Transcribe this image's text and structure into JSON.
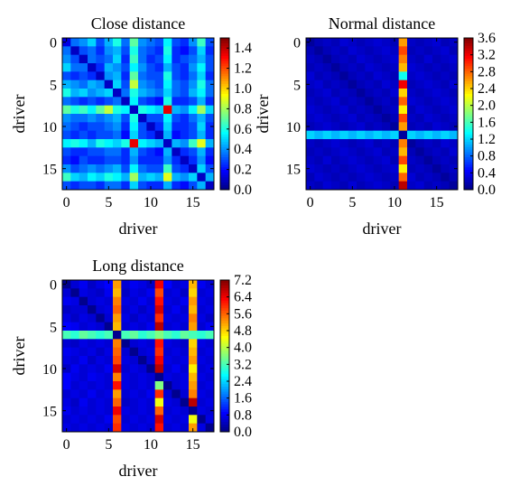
{
  "chart_data": [
    {
      "type": "heatmap",
      "title": "Close distance",
      "xlabel": "driver",
      "ylabel": "driver",
      "n": 18,
      "xticks": [
        0,
        5,
        10,
        15
      ],
      "yticks": [
        0,
        5,
        10,
        15
      ],
      "colorbar": {
        "min": 0.0,
        "max": 1.5,
        "ticks": [
          "0.0",
          "0.2",
          "0.4",
          "0.6",
          "0.8",
          "1.0",
          "1.2",
          "1.4"
        ]
      },
      "colormap": "jet",
      "values": [
        [
          0.15,
          0.35,
          0.4,
          0.5,
          0.3,
          0.45,
          0.6,
          0.35,
          0.7,
          0.4,
          0.35,
          0.3,
          0.55,
          0.3,
          0.25,
          0.4,
          0.65,
          0.3
        ],
        [
          0.35,
          0.1,
          0.3,
          0.35,
          0.25,
          0.4,
          0.45,
          0.3,
          0.6,
          0.35,
          0.3,
          0.25,
          0.6,
          0.25,
          0.2,
          0.3,
          0.5,
          0.25
        ],
        [
          0.4,
          0.3,
          0.1,
          0.35,
          0.3,
          0.35,
          0.5,
          0.25,
          0.65,
          0.35,
          0.25,
          0.3,
          0.55,
          0.25,
          0.3,
          0.35,
          0.45,
          0.3
        ],
        [
          0.5,
          0.35,
          0.35,
          0.1,
          0.25,
          0.45,
          0.4,
          0.3,
          0.55,
          0.4,
          0.3,
          0.25,
          0.45,
          0.3,
          0.25,
          0.4,
          0.55,
          0.3
        ],
        [
          0.3,
          0.25,
          0.3,
          0.25,
          0.1,
          0.4,
          0.45,
          0.25,
          0.7,
          0.35,
          0.3,
          0.3,
          0.6,
          0.3,
          0.25,
          0.35,
          0.5,
          0.25
        ],
        [
          0.45,
          0.4,
          0.35,
          0.45,
          0.4,
          0.1,
          0.5,
          0.3,
          0.85,
          0.4,
          0.35,
          0.3,
          0.55,
          0.35,
          0.3,
          0.4,
          0.6,
          0.35
        ],
        [
          0.6,
          0.45,
          0.5,
          0.4,
          0.45,
          0.5,
          0.1,
          0.35,
          0.6,
          0.45,
          0.4,
          0.35,
          0.5,
          0.35,
          0.3,
          0.45,
          0.55,
          0.35
        ],
        [
          0.35,
          0.3,
          0.25,
          0.3,
          0.25,
          0.3,
          0.35,
          0.1,
          0.55,
          0.3,
          0.25,
          0.2,
          0.6,
          0.25,
          0.25,
          0.3,
          0.45,
          0.25
        ],
        [
          0.7,
          0.6,
          0.65,
          0.55,
          0.7,
          0.85,
          0.6,
          0.55,
          0.1,
          0.6,
          0.55,
          0.5,
          1.35,
          0.45,
          0.4,
          0.55,
          0.8,
          0.5
        ],
        [
          0.4,
          0.35,
          0.35,
          0.4,
          0.35,
          0.4,
          0.45,
          0.3,
          0.6,
          0.1,
          0.3,
          0.3,
          0.55,
          0.3,
          0.25,
          0.35,
          0.45,
          0.3
        ],
        [
          0.35,
          0.3,
          0.25,
          0.3,
          0.3,
          0.35,
          0.4,
          0.25,
          0.55,
          0.3,
          0.1,
          0.25,
          0.5,
          0.25,
          0.25,
          0.3,
          0.5,
          0.25
        ],
        [
          0.3,
          0.25,
          0.3,
          0.25,
          0.3,
          0.3,
          0.35,
          0.2,
          0.5,
          0.3,
          0.25,
          0.1,
          0.45,
          0.2,
          0.25,
          0.3,
          0.45,
          0.25
        ],
        [
          0.55,
          0.6,
          0.55,
          0.45,
          0.6,
          0.55,
          0.5,
          0.6,
          1.35,
          0.55,
          0.5,
          0.45,
          0.1,
          0.45,
          0.4,
          0.65,
          0.9,
          0.45
        ],
        [
          0.3,
          0.25,
          0.25,
          0.3,
          0.3,
          0.35,
          0.35,
          0.25,
          0.45,
          0.3,
          0.25,
          0.2,
          0.45,
          0.1,
          0.25,
          0.3,
          0.45,
          0.25
        ],
        [
          0.25,
          0.2,
          0.3,
          0.25,
          0.25,
          0.3,
          0.3,
          0.25,
          0.4,
          0.25,
          0.25,
          0.25,
          0.4,
          0.25,
          0.1,
          0.25,
          0.4,
          0.2
        ],
        [
          0.4,
          0.3,
          0.35,
          0.4,
          0.35,
          0.4,
          0.45,
          0.3,
          0.55,
          0.35,
          0.3,
          0.3,
          0.65,
          0.3,
          0.25,
          0.1,
          0.5,
          0.3
        ],
        [
          0.65,
          0.5,
          0.45,
          0.55,
          0.5,
          0.6,
          0.55,
          0.45,
          0.8,
          0.45,
          0.5,
          0.45,
          0.9,
          0.45,
          0.4,
          0.5,
          0.1,
          0.45
        ],
        [
          0.3,
          0.25,
          0.3,
          0.3,
          0.25,
          0.35,
          0.35,
          0.25,
          0.5,
          0.3,
          0.25,
          0.25,
          0.45,
          0.25,
          0.2,
          0.3,
          0.45,
          0.1
        ]
      ]
    },
    {
      "type": "heatmap",
      "title": "Normal distance",
      "xlabel": "driver",
      "ylabel": "driver",
      "n": 18,
      "xticks": [
        0,
        5,
        10,
        15
      ],
      "yticks": [
        0,
        5,
        10,
        15
      ],
      "colorbar": {
        "min": 0.0,
        "max": 3.6,
        "ticks": [
          "0.0",
          "0.4",
          "0.8",
          "1.2",
          "1.6",
          "2.0",
          "2.4",
          "2.8",
          "3.2",
          "3.6"
        ]
      },
      "colormap": "jet",
      "values": [
        [
          0.1,
          0.2,
          0.25,
          0.2,
          0.3,
          0.25,
          0.2,
          0.25,
          0.3,
          0.25,
          0.2,
          2.6,
          0.25,
          0.2,
          0.25,
          0.3,
          0.2,
          0.25
        ],
        [
          0.2,
          0.1,
          0.2,
          0.25,
          0.2,
          0.3,
          0.25,
          0.2,
          0.25,
          0.3,
          0.25,
          2.9,
          0.2,
          0.25,
          0.2,
          0.25,
          0.3,
          0.2
        ],
        [
          0.25,
          0.2,
          0.1,
          0.2,
          0.25,
          0.2,
          0.3,
          0.25,
          0.2,
          0.25,
          0.3,
          2.7,
          0.25,
          0.2,
          0.3,
          0.2,
          0.25,
          0.3
        ],
        [
          0.2,
          0.25,
          0.2,
          0.1,
          0.2,
          0.25,
          0.2,
          0.3,
          0.25,
          0.2,
          0.25,
          2.5,
          0.3,
          0.25,
          0.2,
          0.25,
          0.2,
          0.25
        ],
        [
          0.3,
          0.2,
          0.25,
          0.2,
          0.1,
          0.2,
          0.25,
          0.2,
          0.3,
          0.25,
          0.2,
          1.4,
          0.25,
          0.3,
          0.25,
          0.2,
          0.25,
          0.2
        ],
        [
          0.25,
          0.3,
          0.2,
          0.25,
          0.2,
          0.1,
          0.2,
          0.25,
          0.2,
          0.3,
          0.25,
          3.2,
          0.2,
          0.25,
          0.3,
          0.25,
          0.2,
          0.3
        ],
        [
          0.2,
          0.25,
          0.3,
          0.2,
          0.25,
          0.2,
          0.1,
          0.2,
          0.25,
          0.2,
          0.3,
          2.4,
          0.25,
          0.2,
          0.25,
          0.3,
          0.25,
          0.2
        ],
        [
          0.25,
          0.2,
          0.25,
          0.3,
          0.2,
          0.25,
          0.2,
          0.1,
          0.2,
          0.25,
          0.2,
          2.8,
          0.3,
          0.25,
          0.2,
          0.25,
          0.3,
          0.25
        ],
        [
          0.3,
          0.25,
          0.2,
          0.25,
          0.3,
          0.2,
          0.25,
          0.2,
          0.1,
          0.2,
          0.25,
          2.3,
          0.2,
          0.3,
          0.25,
          0.2,
          0.25,
          0.3
        ],
        [
          0.25,
          0.3,
          0.25,
          0.2,
          0.25,
          0.3,
          0.2,
          0.25,
          0.2,
          0.1,
          0.2,
          2.9,
          0.25,
          0.2,
          0.3,
          0.25,
          0.2,
          0.25
        ],
        [
          0.2,
          0.25,
          0.3,
          0.25,
          0.2,
          0.25,
          0.3,
          0.2,
          0.25,
          0.2,
          0.1,
          2.6,
          0.2,
          0.25,
          0.2,
          0.3,
          0.25,
          0.2
        ],
        [
          1.2,
          1.1,
          1.2,
          1.1,
          1.2,
          1.1,
          1.2,
          1.1,
          1.2,
          1.1,
          1.2,
          0.1,
          1.2,
          1.1,
          1.2,
          1.1,
          1.2,
          1.1
        ],
        [
          0.25,
          0.2,
          0.25,
          0.3,
          0.25,
          0.2,
          0.25,
          0.3,
          0.2,
          0.25,
          0.2,
          2.7,
          0.1,
          0.2,
          0.25,
          0.2,
          0.3,
          0.25
        ],
        [
          0.2,
          0.25,
          0.2,
          0.25,
          0.3,
          0.25,
          0.2,
          0.25,
          0.3,
          0.2,
          0.25,
          2.5,
          0.2,
          0.1,
          0.2,
          0.25,
          0.2,
          0.3
        ],
        [
          0.25,
          0.2,
          0.3,
          0.2,
          0.25,
          0.3,
          0.25,
          0.2,
          0.25,
          0.3,
          0.2,
          2.9,
          0.25,
          0.2,
          0.1,
          0.2,
          0.25,
          0.2
        ],
        [
          0.3,
          0.25,
          0.2,
          0.25,
          0.2,
          0.25,
          0.3,
          0.25,
          0.2,
          0.25,
          0.3,
          2.3,
          0.2,
          0.25,
          0.2,
          0.1,
          0.2,
          0.25
        ],
        [
          0.2,
          0.3,
          0.25,
          0.2,
          0.25,
          0.2,
          0.25,
          0.3,
          0.25,
          0.2,
          0.25,
          2.8,
          0.3,
          0.2,
          0.25,
          0.2,
          0.1,
          0.2
        ],
        [
          0.25,
          0.2,
          0.3,
          0.25,
          0.2,
          0.3,
          0.2,
          0.25,
          0.3,
          0.25,
          0.2,
          3.4,
          0.25,
          0.3,
          0.2,
          0.25,
          0.2,
          0.1
        ]
      ]
    },
    {
      "type": "heatmap",
      "title": "Long distance",
      "xlabel": "driver",
      "ylabel": "driver",
      "n": 18,
      "xticks": [
        0,
        5,
        10,
        15
      ],
      "yticks": [
        0,
        5,
        10,
        15
      ],
      "colorbar": {
        "min": 0.0,
        "max": 7.2,
        "ticks": [
          "0.0",
          "0.8",
          "1.6",
          "2.4",
          "3.2",
          "4.0",
          "4.8",
          "5.6",
          "6.4",
          "7.2"
        ]
      },
      "colormap": "jet",
      "values": [
        [
          0.1,
          0.6,
          0.8,
          0.5,
          0.7,
          0.9,
          5.2,
          0.6,
          0.8,
          0.7,
          0.5,
          6.4,
          0.9,
          0.6,
          0.7,
          5.0,
          0.8,
          0.6
        ],
        [
          0.6,
          0.1,
          0.7,
          0.6,
          0.5,
          0.8,
          5.0,
          0.5,
          0.7,
          0.6,
          0.8,
          5.8,
          0.6,
          0.7,
          0.5,
          4.8,
          0.6,
          0.7
        ],
        [
          0.8,
          0.7,
          0.1,
          0.6,
          0.7,
          0.6,
          5.4,
          0.7,
          0.6,
          0.8,
          0.6,
          6.2,
          0.7,
          0.6,
          0.8,
          5.2,
          0.7,
          0.6
        ],
        [
          0.5,
          0.6,
          0.6,
          0.1,
          0.6,
          0.7,
          5.6,
          0.6,
          0.7,
          0.5,
          0.7,
          6.6,
          0.6,
          0.8,
          0.6,
          5.0,
          0.6,
          0.7
        ],
        [
          0.7,
          0.5,
          0.7,
          0.6,
          0.1,
          0.6,
          5.2,
          0.7,
          0.5,
          0.7,
          0.6,
          6.0,
          0.7,
          0.6,
          0.7,
          5.4,
          0.7,
          0.5
        ],
        [
          0.9,
          0.8,
          0.6,
          0.7,
          0.6,
          0.1,
          5.0,
          0.6,
          0.7,
          0.6,
          0.8,
          6.8,
          0.6,
          0.7,
          0.6,
          5.2,
          0.6,
          0.8
        ],
        [
          3.2,
          3.0,
          3.4,
          3.2,
          3.0,
          3.2,
          0.1,
          3.2,
          3.4,
          3.0,
          3.2,
          3.6,
          3.2,
          3.0,
          3.4,
          3.2,
          3.0,
          3.2
        ],
        [
          0.6,
          0.5,
          0.7,
          0.6,
          0.7,
          0.6,
          5.4,
          0.1,
          0.6,
          0.7,
          0.6,
          6.2,
          0.7,
          0.6,
          0.5,
          4.8,
          0.7,
          0.6
        ],
        [
          0.8,
          0.7,
          0.6,
          0.7,
          0.5,
          0.7,
          5.6,
          0.6,
          0.1,
          0.6,
          0.7,
          6.0,
          0.6,
          0.7,
          0.6,
          5.0,
          0.6,
          0.7
        ],
        [
          0.7,
          0.6,
          0.8,
          0.5,
          0.7,
          0.6,
          5.8,
          0.7,
          0.6,
          0.1,
          0.6,
          6.4,
          0.7,
          0.6,
          0.7,
          5.2,
          0.7,
          0.6
        ],
        [
          0.5,
          0.8,
          0.6,
          0.7,
          0.6,
          0.8,
          6.6,
          0.6,
          0.7,
          0.6,
          0.1,
          6.8,
          0.6,
          0.8,
          0.6,
          4.6,
          0.6,
          0.7
        ],
        [
          0.9,
          0.7,
          0.6,
          0.8,
          0.7,
          0.6,
          5.4,
          0.7,
          0.6,
          0.7,
          0.6,
          0.1,
          0.7,
          0.6,
          0.7,
          5.0,
          0.7,
          0.6
        ],
        [
          0.9,
          0.6,
          0.7,
          0.6,
          0.7,
          0.6,
          6.2,
          0.7,
          0.6,
          0.7,
          0.6,
          3.6,
          0.1,
          0.6,
          0.7,
          5.2,
          0.6,
          0.7
        ],
        [
          0.6,
          0.7,
          0.6,
          0.8,
          0.6,
          0.7,
          5.2,
          0.6,
          0.7,
          0.6,
          0.8,
          6.0,
          0.6,
          0.1,
          0.6,
          5.4,
          0.7,
          0.6
        ],
        [
          0.7,
          0.5,
          0.8,
          0.6,
          0.7,
          0.6,
          5.6,
          0.5,
          0.6,
          0.7,
          0.6,
          4.4,
          0.7,
          0.6,
          0.1,
          6.8,
          0.6,
          0.7
        ],
        [
          0.8,
          0.6,
          0.7,
          0.6,
          0.7,
          0.6,
          6.4,
          0.7,
          0.6,
          0.7,
          0.6,
          5.6,
          0.6,
          0.7,
          0.6,
          0.1,
          0.7,
          0.6
        ],
        [
          0.6,
          0.7,
          0.6,
          0.7,
          0.6,
          0.8,
          5.8,
          0.6,
          0.7,
          0.6,
          0.7,
          6.6,
          0.7,
          0.6,
          0.7,
          4.4,
          0.1,
          0.7
        ],
        [
          0.7,
          0.6,
          0.7,
          0.6,
          0.7,
          0.6,
          6.0,
          0.7,
          0.6,
          0.7,
          0.6,
          6.2,
          0.6,
          0.7,
          0.6,
          5.2,
          0.7,
          0.1
        ]
      ]
    }
  ]
}
